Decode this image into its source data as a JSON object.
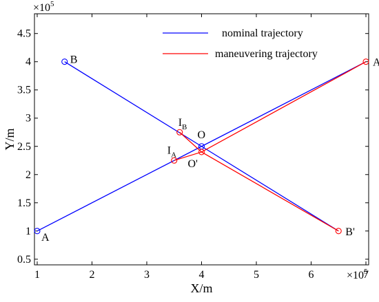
{
  "chart_data": {
    "type": "line",
    "xlabel": "X/m",
    "ylabel": "Y/m",
    "x_multiplier_base": "×10",
    "x_multiplier_exp": "5",
    "y_multiplier_base": "×10",
    "y_multiplier_exp": "5",
    "xlim": [
      0.95,
      7.05
    ],
    "ylim": [
      0.4,
      4.85
    ],
    "x_ticks": [
      1,
      2,
      3,
      4,
      5,
      6,
      7
    ],
    "y_ticks": [
      0.5,
      1,
      1.5,
      2,
      2.5,
      3,
      3.5,
      4,
      4.5
    ],
    "x_tick_labels": [
      "1",
      "2",
      "3",
      "4",
      "5",
      "6",
      "7"
    ],
    "y_tick_labels": [
      "0.5",
      "1",
      "1.5",
      "2",
      "2.5",
      "3",
      "3.5",
      "4",
      "4.5"
    ],
    "grid": false,
    "legend_position": "top-right",
    "series": [
      {
        "name": "nominal trajectory",
        "color": "#0000ff",
        "segments": [
          [
            [
              1,
              1
            ],
            [
              4,
              2.5
            ],
            [
              7,
              4
            ]
          ],
          [
            [
              1.5,
              4
            ],
            [
              4,
              2.5
            ],
            [
              6.5,
              1
            ]
          ]
        ],
        "markers": [
          [
            1,
            1
          ],
          [
            1.5,
            4
          ],
          [
            4,
            2.5
          ]
        ]
      },
      {
        "name": "maneuvering trajectory",
        "color": "#ff0000",
        "segments": [
          [
            [
              3.5,
              2.25
            ],
            [
              4,
              2.4
            ],
            [
              7,
              4
            ]
          ],
          [
            [
              3.6,
              2.75
            ],
            [
              4,
              2.4
            ],
            [
              6.5,
              1
            ]
          ]
        ],
        "markers": [
          [
            3.5,
            2.25
          ],
          [
            3.6,
            2.75
          ],
          [
            4,
            2.4
          ],
          [
            7,
            4
          ],
          [
            6.5,
            1
          ]
        ]
      }
    ],
    "point_labels": [
      {
        "id": "A",
        "main": "A",
        "sub": "",
        "x": 1,
        "y": 1,
        "dx": 6,
        "dy": 14
      },
      {
        "id": "B",
        "main": "B",
        "sub": "",
        "x": 1.5,
        "y": 4,
        "dx": 8,
        "dy": 2
      },
      {
        "id": "O",
        "main": "O",
        "sub": "",
        "x": 4,
        "y": 2.5,
        "dx": -6,
        "dy": -12
      },
      {
        "id": "Oprime",
        "main": "O'",
        "sub": "",
        "x": 4,
        "y": 2.4,
        "dx": -20,
        "dy": 22
      },
      {
        "id": "IA",
        "main": "I",
        "sub": "A",
        "x": 3.5,
        "y": 2.25,
        "dx": -10,
        "dy": -10
      },
      {
        "id": "IB",
        "main": "I",
        "sub": "B",
        "x": 3.6,
        "y": 2.75,
        "dx": -2,
        "dy": -9
      },
      {
        "id": "Aprime",
        "main": "A'",
        "sub": "",
        "x": 7,
        "y": 4,
        "dx": 10,
        "dy": 6
      },
      {
        "id": "Bprime",
        "main": "B'",
        "sub": "",
        "x": 6.5,
        "y": 1,
        "dx": 10,
        "dy": 6
      }
    ]
  }
}
